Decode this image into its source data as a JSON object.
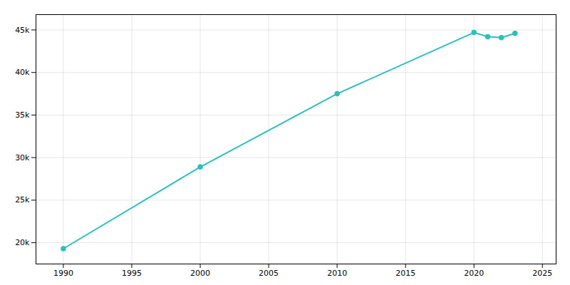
{
  "chart_data": {
    "type": "line",
    "x": [
      1990,
      2000,
      2010,
      2020,
      2021,
      2022,
      2023
    ],
    "values": [
      19300,
      28900,
      37500,
      44700,
      44200,
      44100,
      44600
    ],
    "color": "#2abfbf",
    "marker": "circle",
    "xlim": [
      1988,
      2026
    ],
    "ylim": [
      17500,
      46800
    ],
    "xticks": [
      1990,
      1995,
      2000,
      2005,
      2010,
      2015,
      2020,
      2025
    ],
    "yticks": [
      {
        "value": 20000,
        "label": "20k"
      },
      {
        "value": 25000,
        "label": "25k"
      },
      {
        "value": 30000,
        "label": "30k"
      },
      {
        "value": 35000,
        "label": "35k"
      },
      {
        "value": 40000,
        "label": "40k"
      },
      {
        "value": 45000,
        "label": "45k"
      }
    ],
    "grid": true
  }
}
